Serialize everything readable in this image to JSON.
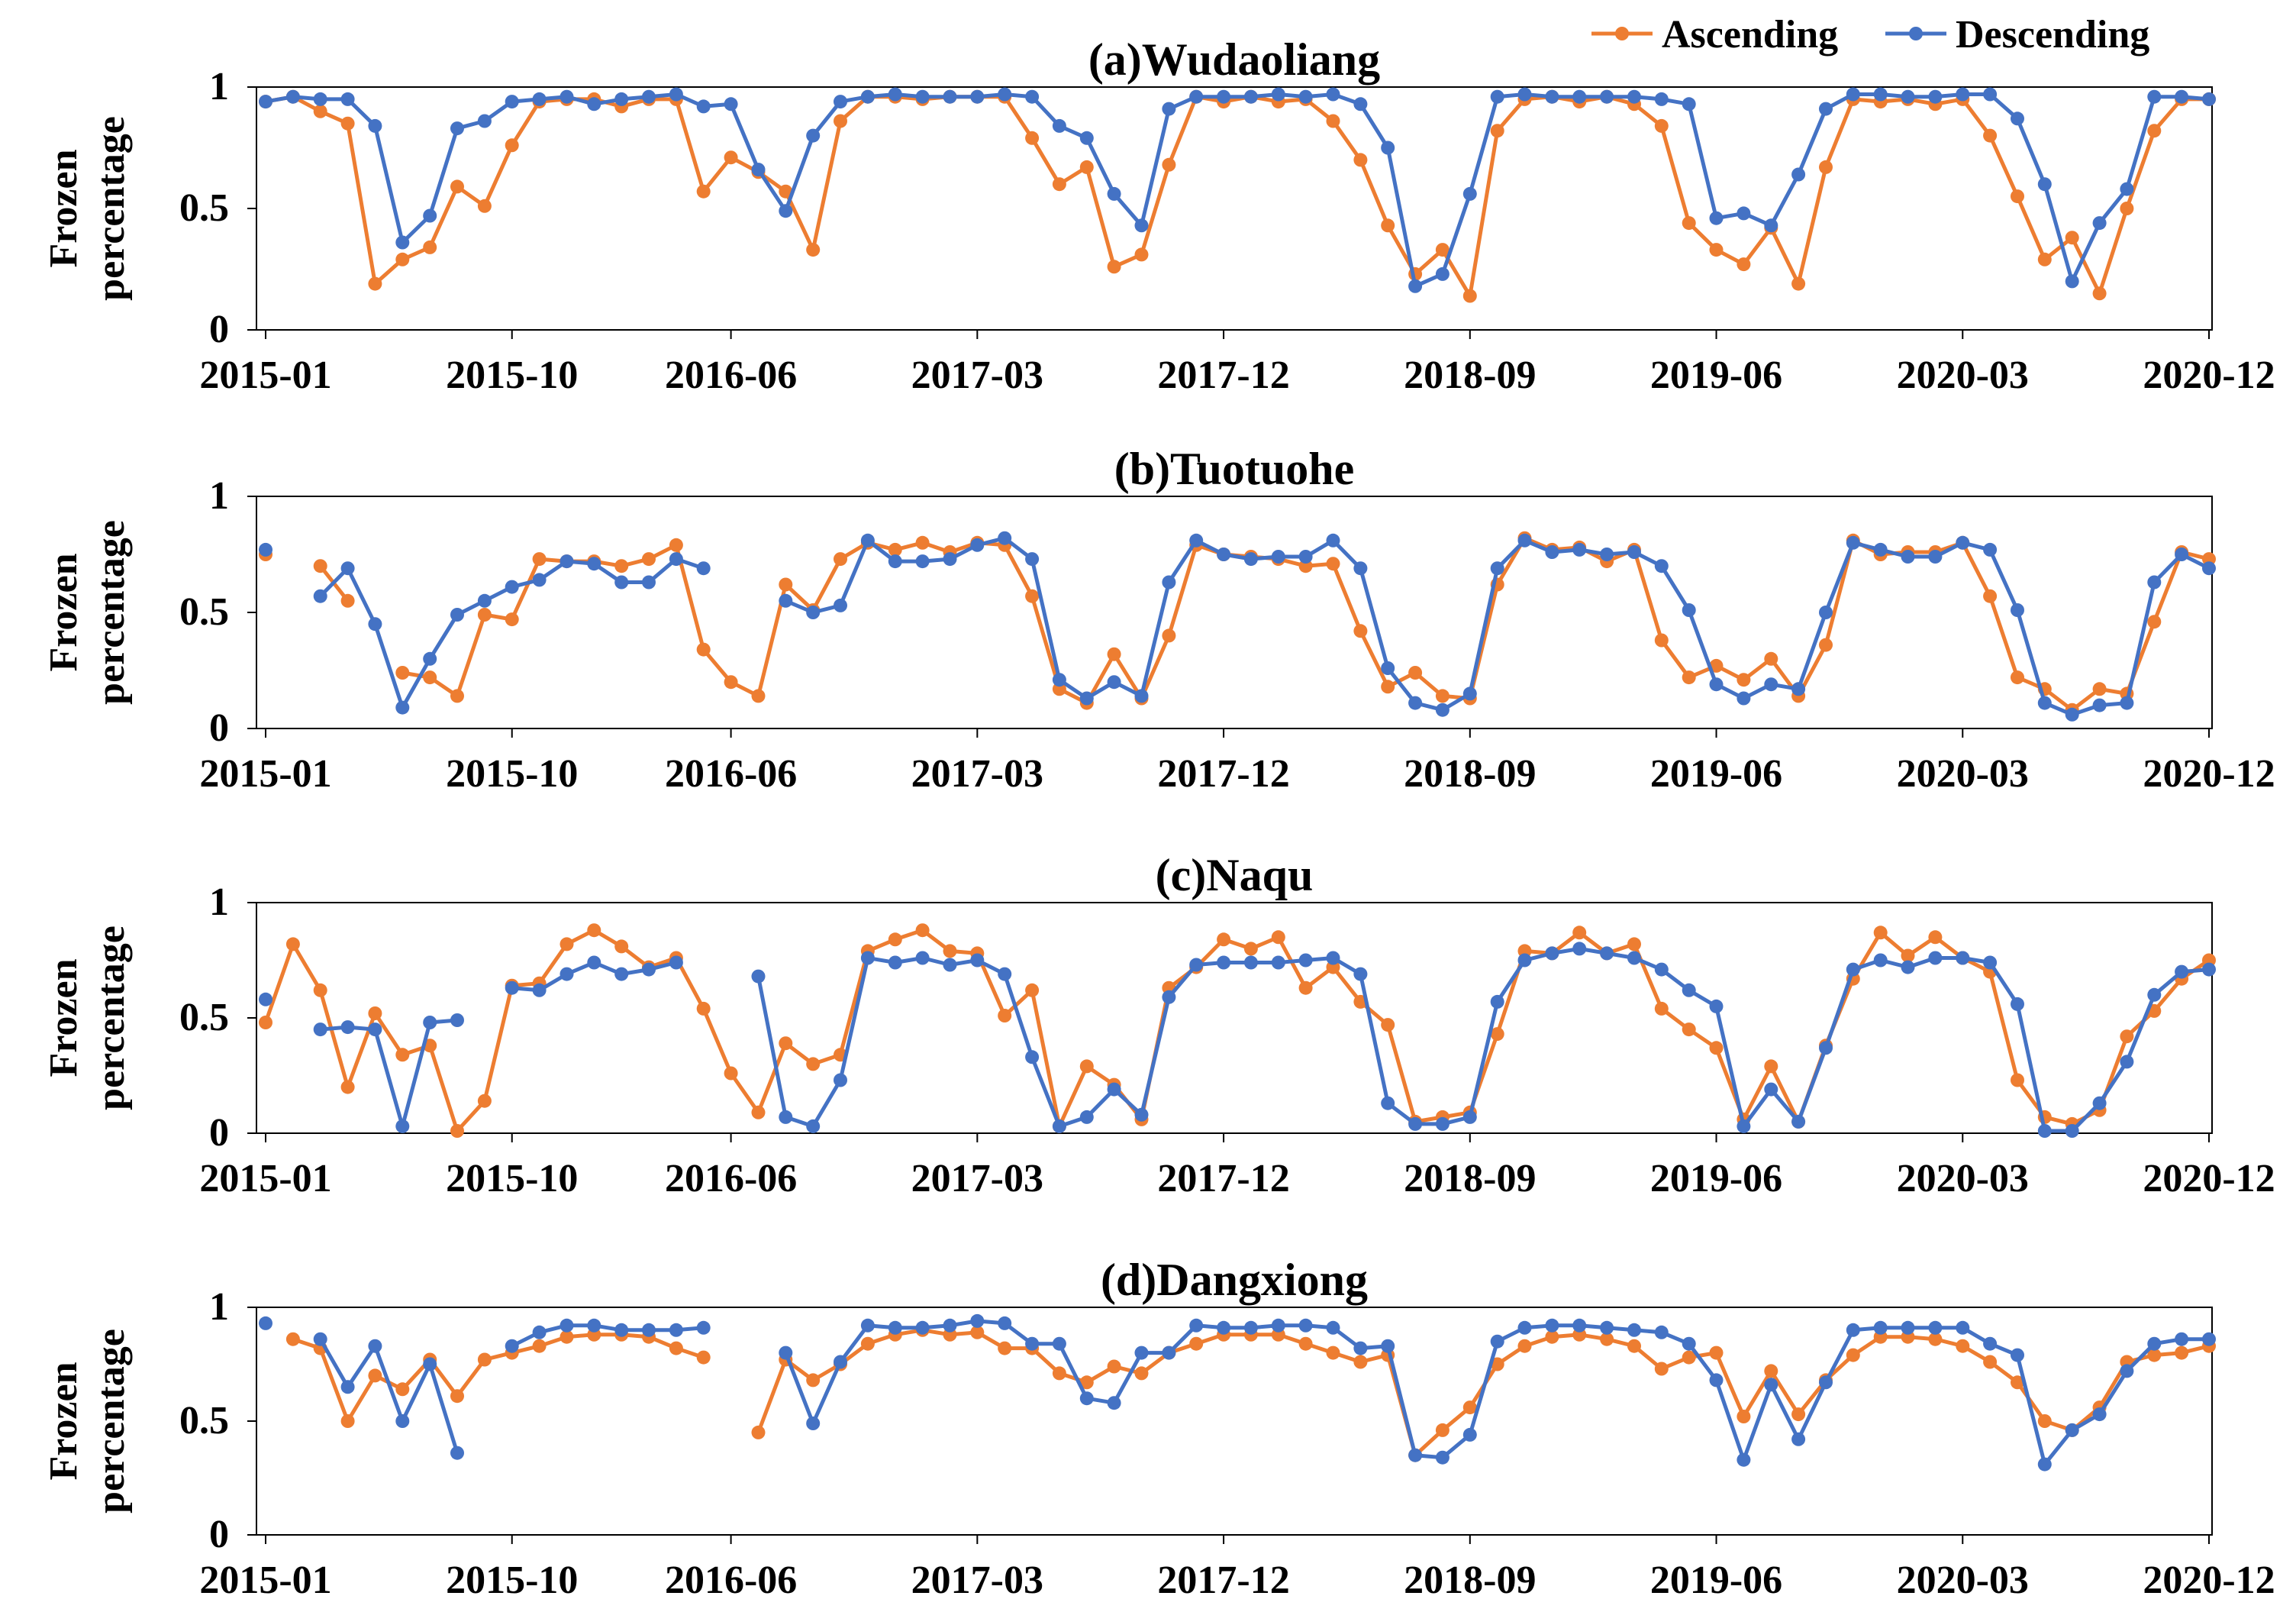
{
  "legend": {
    "position": "top-right",
    "entries": [
      {
        "name": "Ascending",
        "color": "#ED7D31"
      },
      {
        "name": "Descending",
        "color": "#4472C4"
      }
    ]
  },
  "colors": {
    "ascending": "#ED7D31",
    "descending": "#4472C4",
    "axis": "#000000"
  },
  "chart_data": [
    {
      "type": "line",
      "title": "(a)Wudaoliang",
      "ylabel": "Frozen percentage",
      "ylim": [
        0,
        1
      ],
      "yticks": [
        "0",
        "0.5",
        "1"
      ],
      "x_start": "2015-01",
      "x_end": "2020-12",
      "xtick_labels": [
        "2015-01",
        "2015-10",
        "2016-06",
        "2017-03",
        "2017-12",
        "2018-09",
        "2019-06",
        "2020-03",
        "2020-12"
      ],
      "series": [
        {
          "name": "Ascending",
          "values": [
            0.94,
            0.96,
            0.9,
            0.85,
            0.19,
            0.29,
            0.34,
            0.59,
            0.51,
            0.76,
            0.94,
            0.95,
            0.95,
            0.92,
            0.95,
            0.95,
            0.57,
            0.71,
            0.65,
            0.57,
            0.33,
            0.86,
            0.96,
            0.96,
            0.95,
            0.96,
            0.96,
            0.96,
            0.79,
            0.6,
            0.67,
            0.26,
            0.31,
            0.68,
            0.96,
            0.94,
            0.96,
            0.94,
            0.95,
            0.86,
            0.7,
            0.43,
            0.23,
            0.33,
            0.14,
            0.82,
            0.95,
            0.96,
            0.94,
            0.96,
            0.93,
            0.84,
            0.44,
            0.33,
            0.27,
            0.42,
            0.19,
            0.67,
            0.95,
            0.94,
            0.95,
            0.93,
            0.95,
            0.8,
            0.55,
            0.29,
            0.38,
            0.15,
            0.5,
            0.82,
            0.95,
            0.95
          ]
        },
        {
          "name": "Descending",
          "values": [
            0.94,
            0.96,
            0.95,
            0.95,
            0.84,
            0.36,
            0.47,
            0.83,
            0.86,
            0.94,
            0.95,
            0.96,
            0.93,
            0.95,
            0.96,
            0.97,
            0.92,
            0.93,
            0.66,
            0.49,
            0.8,
            0.94,
            0.96,
            0.97,
            0.96,
            0.96,
            0.96,
            0.97,
            0.96,
            0.84,
            0.79,
            0.56,
            0.43,
            0.91,
            0.96,
            0.96,
            0.96,
            0.97,
            0.96,
            0.97,
            0.93,
            0.75,
            0.18,
            0.23,
            0.56,
            0.96,
            0.97,
            0.96,
            0.96,
            0.96,
            0.96,
            0.95,
            0.93,
            0.46,
            0.48,
            0.43,
            0.64,
            0.91,
            0.97,
            0.97,
            0.96,
            0.96,
            0.97,
            0.97,
            0.87,
            0.6,
            0.2,
            0.44,
            0.58,
            0.96,
            0.96,
            0.95
          ]
        }
      ]
    },
    {
      "type": "line",
      "title": "(b)Tuotuohe",
      "ylabel": "Frozen percentage",
      "ylim": [
        0,
        1
      ],
      "yticks": [
        "0",
        "0.5",
        "1"
      ],
      "x_start": "2015-01",
      "x_end": "2020-12",
      "xtick_labels": [
        "2015-01",
        "2015-10",
        "2016-06",
        "2017-03",
        "2017-12",
        "2018-09",
        "2019-06",
        "2020-03",
        "2020-12"
      ],
      "series": [
        {
          "name": "Ascending",
          "values": [
            0.75,
            null,
            0.7,
            0.55,
            null,
            0.24,
            0.22,
            0.14,
            0.49,
            0.47,
            0.73,
            0.72,
            0.72,
            0.7,
            0.73,
            0.79,
            0.34,
            0.2,
            0.14,
            0.62,
            0.51,
            0.73,
            0.8,
            0.77,
            0.8,
            0.76,
            0.8,
            0.79,
            0.57,
            0.17,
            0.11,
            0.32,
            0.13,
            0.4,
            0.79,
            0.75,
            0.74,
            0.73,
            0.7,
            0.71,
            0.42,
            0.18,
            0.24,
            0.14,
            0.13,
            0.62,
            0.82,
            0.77,
            0.78,
            0.72,
            0.77,
            0.38,
            0.22,
            0.27,
            0.21,
            0.3,
            0.14,
            0.36,
            0.81,
            0.75,
            0.76,
            0.76,
            0.8,
            0.57,
            0.22,
            0.17,
            0.08,
            0.17,
            0.15,
            0.46,
            0.76,
            0.73
          ]
        },
        {
          "name": "Descending",
          "values": [
            0.77,
            null,
            0.57,
            0.69,
            0.45,
            0.09,
            0.3,
            0.49,
            0.55,
            0.61,
            0.64,
            0.72,
            0.71,
            0.63,
            0.63,
            0.73,
            0.69,
            null,
            null,
            0.55,
            0.5,
            0.53,
            0.81,
            0.72,
            0.72,
            0.73,
            0.79,
            0.82,
            0.73,
            0.21,
            0.13,
            0.2,
            0.14,
            0.63,
            0.81,
            0.75,
            0.73,
            0.74,
            0.74,
            0.81,
            0.69,
            0.26,
            0.11,
            0.08,
            0.15,
            0.69,
            0.81,
            0.76,
            0.77,
            0.75,
            0.76,
            0.7,
            0.51,
            0.19,
            0.13,
            0.19,
            0.17,
            0.5,
            0.8,
            0.77,
            0.74,
            0.74,
            0.8,
            0.77,
            0.51,
            0.11,
            0.06,
            0.1,
            0.11,
            0.63,
            0.75,
            0.69
          ]
        }
      ]
    },
    {
      "type": "line",
      "title": "(c)Naqu",
      "ylabel": "Frozen percentage",
      "ylim": [
        0,
        1
      ],
      "yticks": [
        "0",
        "0.5",
        "1"
      ],
      "x_start": "2015-01",
      "x_end": "2020-12",
      "xtick_labels": [
        "2015-01",
        "2015-10",
        "2016-06",
        "2017-03",
        "2017-12",
        "2018-09",
        "2019-06",
        "2020-03",
        "2020-12"
      ],
      "series": [
        {
          "name": "Ascending",
          "values": [
            0.48,
            0.82,
            0.62,
            0.2,
            0.52,
            0.34,
            0.38,
            0.01,
            0.14,
            0.64,
            0.65,
            0.82,
            0.88,
            0.81,
            0.72,
            0.76,
            0.54,
            0.26,
            0.09,
            0.39,
            0.3,
            0.34,
            0.79,
            0.84,
            0.88,
            0.79,
            0.78,
            0.51,
            0.62,
            0.03,
            0.29,
            0.21,
            0.06,
            0.63,
            0.72,
            0.84,
            0.8,
            0.85,
            0.63,
            0.72,
            0.57,
            0.47,
            0.05,
            0.07,
            0.09,
            0.43,
            0.79,
            0.78,
            0.87,
            0.78,
            0.82,
            0.54,
            0.45,
            0.37,
            0.06,
            0.29,
            0.05,
            0.38,
            0.67,
            0.87,
            0.77,
            0.85,
            0.76,
            0.7,
            0.23,
            0.07,
            0.04,
            0.1,
            0.42,
            0.53,
            0.67,
            0.75
          ]
        },
        {
          "name": "Descending",
          "values": [
            0.58,
            null,
            0.45,
            0.46,
            0.45,
            0.03,
            0.48,
            0.49,
            null,
            0.63,
            0.62,
            0.69,
            0.74,
            0.69,
            0.71,
            0.74,
            null,
            null,
            0.68,
            0.07,
            0.03,
            0.23,
            0.76,
            0.74,
            0.76,
            0.73,
            0.75,
            0.69,
            0.33,
            0.03,
            0.07,
            0.19,
            0.08,
            0.59,
            0.73,
            0.74,
            0.74,
            0.74,
            0.75,
            0.76,
            0.69,
            0.13,
            0.04,
            0.04,
            0.07,
            0.57,
            0.75,
            0.78,
            0.8,
            0.78,
            0.76,
            0.71,
            0.62,
            0.55,
            0.03,
            0.19,
            0.05,
            0.37,
            0.71,
            0.75,
            0.72,
            0.76,
            0.76,
            0.74,
            0.56,
            0.01,
            0.01,
            0.13,
            0.31,
            0.6,
            0.7,
            0.71
          ]
        }
      ]
    },
    {
      "type": "line",
      "title": "(d)Dangxiong",
      "ylabel": "Frozen percentage",
      "ylim": [
        0,
        1
      ],
      "yticks": [
        "0",
        "0.5",
        "1"
      ],
      "x_start": "2015-01",
      "x_end": "2020-12",
      "xtick_labels": [
        "2015-01",
        "2015-10",
        "2016-06",
        "2017-03",
        "2017-12",
        "2018-09",
        "2019-06",
        "2020-03",
        "2020-12"
      ],
      "series": [
        {
          "name": "Ascending",
          "values": [
            null,
            0.86,
            0.82,
            0.5,
            0.7,
            0.64,
            0.77,
            0.61,
            0.77,
            0.8,
            0.83,
            0.87,
            0.88,
            0.88,
            0.87,
            0.82,
            0.78,
            null,
            0.45,
            0.77,
            0.68,
            0.75,
            0.84,
            0.88,
            0.9,
            0.88,
            0.89,
            0.82,
            0.82,
            0.71,
            0.67,
            0.74,
            0.71,
            0.8,
            0.84,
            0.88,
            0.88,
            0.88,
            0.84,
            0.8,
            0.76,
            0.79,
            0.35,
            0.46,
            0.56,
            0.75,
            0.83,
            0.87,
            0.88,
            0.86,
            0.83,
            0.73,
            0.78,
            0.8,
            0.52,
            0.72,
            0.53,
            0.68,
            0.79,
            0.87,
            0.87,
            0.86,
            0.83,
            0.76,
            0.67,
            0.5,
            0.46,
            0.56,
            0.76,
            0.79,
            0.8,
            0.83
          ]
        },
        {
          "name": "Descending",
          "values": [
            0.93,
            null,
            0.86,
            0.65,
            0.83,
            0.5,
            0.75,
            0.36,
            null,
            0.83,
            0.89,
            0.92,
            0.92,
            0.9,
            0.9,
            0.9,
            0.91,
            null,
            null,
            0.8,
            0.49,
            0.76,
            0.92,
            0.91,
            0.91,
            0.92,
            0.94,
            0.93,
            0.84,
            0.84,
            0.6,
            0.58,
            0.8,
            0.8,
            0.92,
            0.91,
            0.91,
            0.92,
            0.92,
            0.91,
            0.82,
            0.83,
            0.35,
            0.34,
            0.44,
            0.85,
            0.91,
            0.92,
            0.92,
            0.91,
            0.9,
            0.89,
            0.84,
            0.68,
            0.33,
            0.66,
            0.42,
            0.67,
            0.9,
            0.91,
            0.91,
            0.91,
            0.91,
            0.84,
            0.79,
            0.31,
            0.46,
            0.53,
            0.72,
            0.84,
            0.86,
            0.86
          ]
        }
      ]
    }
  ]
}
